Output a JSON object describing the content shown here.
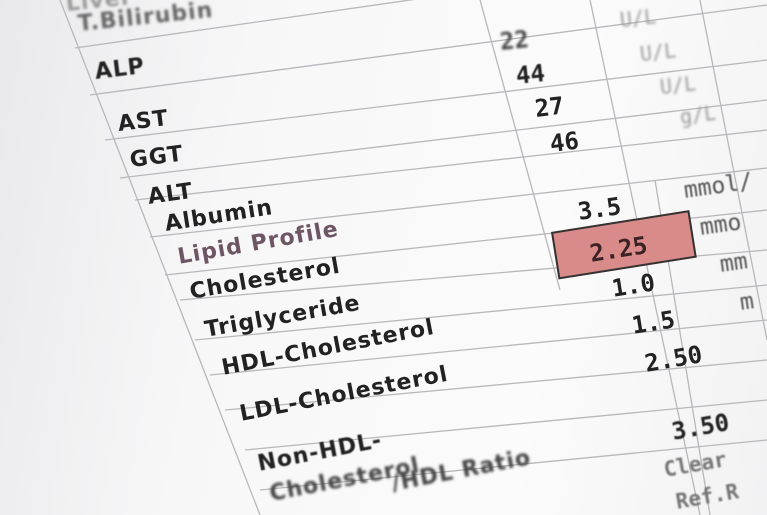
{
  "report": {
    "rows": [
      {
        "label": "Liver"
      },
      {
        "label": "T.Bilirubin"
      },
      {
        "label": "ALP"
      },
      {
        "label": "AST"
      },
      {
        "label": "GGT"
      },
      {
        "label": "ALT"
      },
      {
        "label": "Albumin"
      },
      {
        "label": "Lipid Profile"
      },
      {
        "label": "Cholesterol"
      },
      {
        "label": "Triglyceride"
      },
      {
        "label": "HDL-Cholesterol"
      },
      {
        "label": "LDL-Cholesterol"
      },
      {
        "label": "Non-HDL-"
      },
      {
        "label": "Cholesterol"
      },
      {
        "label": "/HDL Ratio"
      }
    ],
    "values": [
      "22",
      "44",
      "27",
      "46",
      "3.5",
      "2.25",
      "1.0",
      "1.5",
      "2.50",
      "3.50"
    ],
    "units": [
      "U/L",
      "U/L",
      "U/L",
      "g/L",
      "mmol/",
      "mmo",
      "mm",
      "m"
    ],
    "notes": [
      "Clear",
      "Ref.R"
    ],
    "highlight_color": "#d98b89"
  }
}
